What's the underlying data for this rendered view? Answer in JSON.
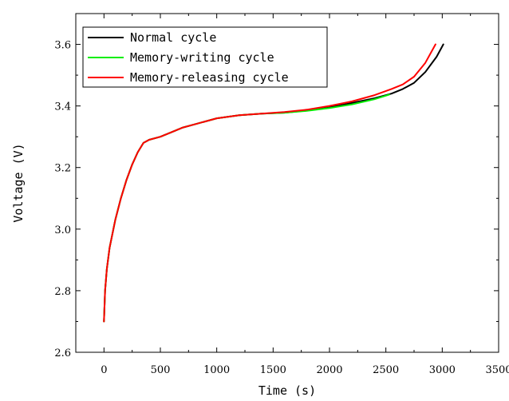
{
  "chart_data": {
    "type": "line",
    "xlabel": "Time (s)",
    "ylabel": "Voltage (V)",
    "xlim": [
      -250,
      3500
    ],
    "ylim": [
      2.6,
      3.7
    ],
    "x_ticks": [
      0,
      500,
      1000,
      1500,
      2000,
      2500,
      3000,
      3500
    ],
    "x_tick_labels": [
      "0",
      "500",
      "1000",
      "1500",
      "2000",
      "2500",
      "3000",
      "3500"
    ],
    "y_ticks": [
      2.6,
      2.8,
      3.0,
      3.2,
      3.4,
      3.6
    ],
    "y_tick_labels": [
      "2.6",
      "2.8",
      "3.0",
      "3.2",
      "3.4",
      "3.6"
    ],
    "grid": false,
    "legend_position": "top-left",
    "series": [
      {
        "name": "Normal cycle",
        "color": "#000000",
        "x": [
          0,
          10,
          25,
          50,
          100,
          150,
          200,
          250,
          300,
          350,
          400,
          500,
          600,
          700,
          800,
          1000,
          1200,
          1400,
          1600,
          1800,
          2000,
          2200,
          2400,
          2550,
          2650,
          2750,
          2850,
          2950,
          3010
        ],
        "y": [
          2.7,
          2.8,
          2.87,
          2.94,
          3.03,
          3.1,
          3.16,
          3.21,
          3.25,
          3.28,
          3.29,
          3.3,
          3.315,
          3.33,
          3.34,
          3.36,
          3.37,
          3.375,
          3.378,
          3.385,
          3.395,
          3.41,
          3.425,
          3.44,
          3.455,
          3.475,
          3.51,
          3.56,
          3.6
        ]
      },
      {
        "name": "Memory-writing cycle",
        "color": "#00ee00",
        "x": [
          0,
          10,
          25,
          50,
          100,
          150,
          200,
          250,
          300,
          350,
          400,
          500,
          600,
          700,
          800,
          1000,
          1200,
          1400,
          1600,
          1800,
          2000,
          2200,
          2400,
          2530
        ],
        "y": [
          2.7,
          2.8,
          2.87,
          2.94,
          3.03,
          3.1,
          3.16,
          3.21,
          3.25,
          3.28,
          3.29,
          3.3,
          3.315,
          3.33,
          3.34,
          3.36,
          3.37,
          3.375,
          3.378,
          3.384,
          3.393,
          3.405,
          3.422,
          3.437
        ]
      },
      {
        "name": "Memory-releasing cycle",
        "color": "#ff0000",
        "x": [
          0,
          10,
          25,
          50,
          100,
          150,
          200,
          250,
          300,
          350,
          400,
          500,
          600,
          700,
          800,
          1000,
          1200,
          1400,
          1600,
          1800,
          2000,
          2200,
          2400,
          2550,
          2650,
          2750,
          2850,
          2940
        ],
        "y": [
          2.7,
          2.8,
          2.87,
          2.94,
          3.03,
          3.1,
          3.16,
          3.21,
          3.25,
          3.28,
          3.29,
          3.3,
          3.315,
          3.33,
          3.34,
          3.36,
          3.37,
          3.375,
          3.38,
          3.388,
          3.4,
          3.415,
          3.435,
          3.455,
          3.47,
          3.495,
          3.54,
          3.6
        ]
      }
    ]
  }
}
